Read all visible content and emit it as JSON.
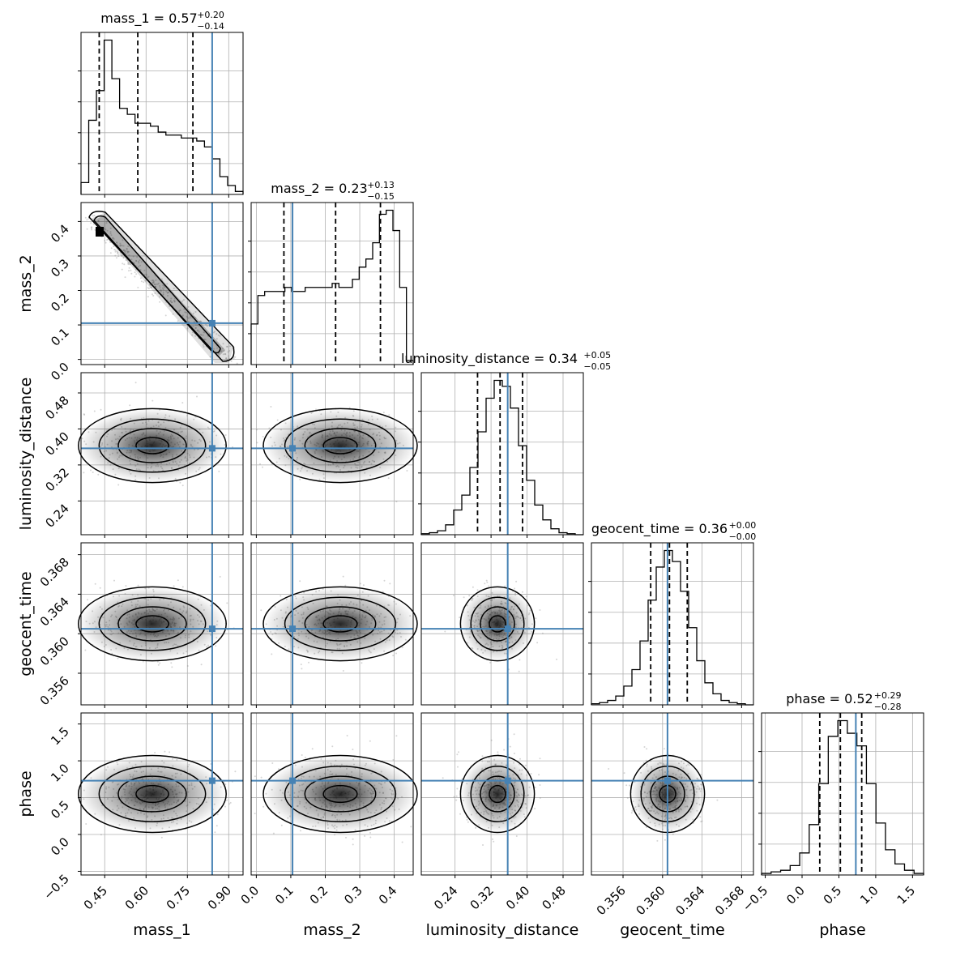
{
  "chart_data": {
    "type": "corner",
    "parameters": [
      {
        "key": "mass_1",
        "label": "mass_1",
        "range": [
          0.364,
          0.952
        ],
        "ticks": [
          0.45,
          0.6,
          0.75,
          0.9
        ],
        "tick_labels": [
          "0.45",
          "0.60",
          "0.75",
          "0.90"
        ],
        "truth": 0.84
      },
      {
        "key": "mass_2",
        "label": "mass_2",
        "range": [
          -0.015,
          0.455
        ],
        "ticks": [
          0.0,
          0.1,
          0.2,
          0.3,
          0.4
        ],
        "tick_labels": [
          "0.0",
          "0.1",
          "0.2",
          "0.3",
          "0.4"
        ],
        "truth": 0.105
      },
      {
        "key": "luminosity_distance",
        "label": "luminosity_distance",
        "range": [
          0.165,
          0.525
        ],
        "ticks": [
          0.24,
          0.32,
          0.4,
          0.48
        ],
        "tick_labels": [
          "0.24",
          "0.32",
          "0.40",
          "0.48"
        ],
        "truth": 0.357
      },
      {
        "key": "geocent_time",
        "label": "geocent_time",
        "range": [
          0.3528,
          0.3692
        ],
        "ticks": [
          0.356,
          0.36,
          0.364,
          0.368
        ],
        "tick_labels": [
          "0.356",
          "0.360",
          "0.364",
          "0.368"
        ],
        "truth": 0.3605
      },
      {
        "key": "phase",
        "label": "phase",
        "range": [
          -0.55,
          1.65
        ],
        "ticks": [
          -0.5,
          0.0,
          0.5,
          1.0,
          1.5
        ],
        "tick_labels": [
          "−0.5",
          "0.0",
          "0.5",
          "1.0",
          "1.5"
        ],
        "truth": 0.73
      }
    ],
    "titles": [
      {
        "text": "mass_1 = 0.57",
        "sup": "+0.20",
        "sub": "−0.14"
      },
      {
        "text": "mass_2 = 0.23",
        "sup": "+0.13",
        "sub": "−0.15"
      },
      {
        "text": "luminosity_distance = 0.34",
        "sup": "+0.05",
        "sub": "−0.05"
      },
      {
        "text": "geocent_time = 0.36",
        "sup": "+0.00",
        "sub": "−0.00"
      },
      {
        "text": "phase = 0.52",
        "sup": "+0.29",
        "sub": "−0.28"
      }
    ],
    "quantiles": [
      [
        0.43,
        0.57,
        0.77
      ],
      [
        0.08,
        0.23,
        0.36
      ],
      [
        0.29,
        0.34,
        0.39
      ],
      [
        0.3588,
        0.3607,
        0.3625
      ],
      [
        0.24,
        0.52,
        0.81
      ]
    ],
    "histograms": [
      {
        "x0": 0.364,
        "x1": 0.952,
        "counts": [
          4,
          25,
          35,
          52,
          39,
          29,
          27,
          24,
          24,
          23,
          21,
          20,
          20,
          19,
          19,
          18,
          16,
          12,
          6,
          3,
          1
        ]
      },
      {
        "x0": -0.015,
        "x1": 0.455,
        "counts": [
          10,
          17,
          18,
          18,
          18,
          19,
          18,
          18,
          19,
          19,
          19,
          19,
          20,
          19,
          19,
          21,
          24,
          26,
          30,
          37,
          38,
          33,
          19,
          1
        ]
      },
      {
        "x0": 0.165,
        "x1": 0.525,
        "counts": [
          1,
          2,
          4,
          10,
          25,
          40,
          68,
          104,
          138,
          156,
          150,
          128,
          90,
          55,
          30,
          15,
          6,
          2,
          1,
          0
        ]
      },
      {
        "x0": 0.3528,
        "x1": 0.3692,
        "counts": [
          1,
          2,
          4,
          8,
          17,
          32,
          58,
          95,
          125,
          140,
          130,
          103,
          70,
          40,
          20,
          10,
          4,
          2,
          1,
          0
        ]
      },
      {
        "x0": -0.55,
        "x1": 1.65,
        "counts": [
          1,
          2,
          3,
          6,
          14,
          32,
          58,
          88,
          98,
          90,
          82,
          58,
          33,
          16,
          7,
          3,
          1
        ]
      }
    ],
    "grid": true,
    "truth_color": "#4682b4",
    "contour_color": "#000000"
  }
}
